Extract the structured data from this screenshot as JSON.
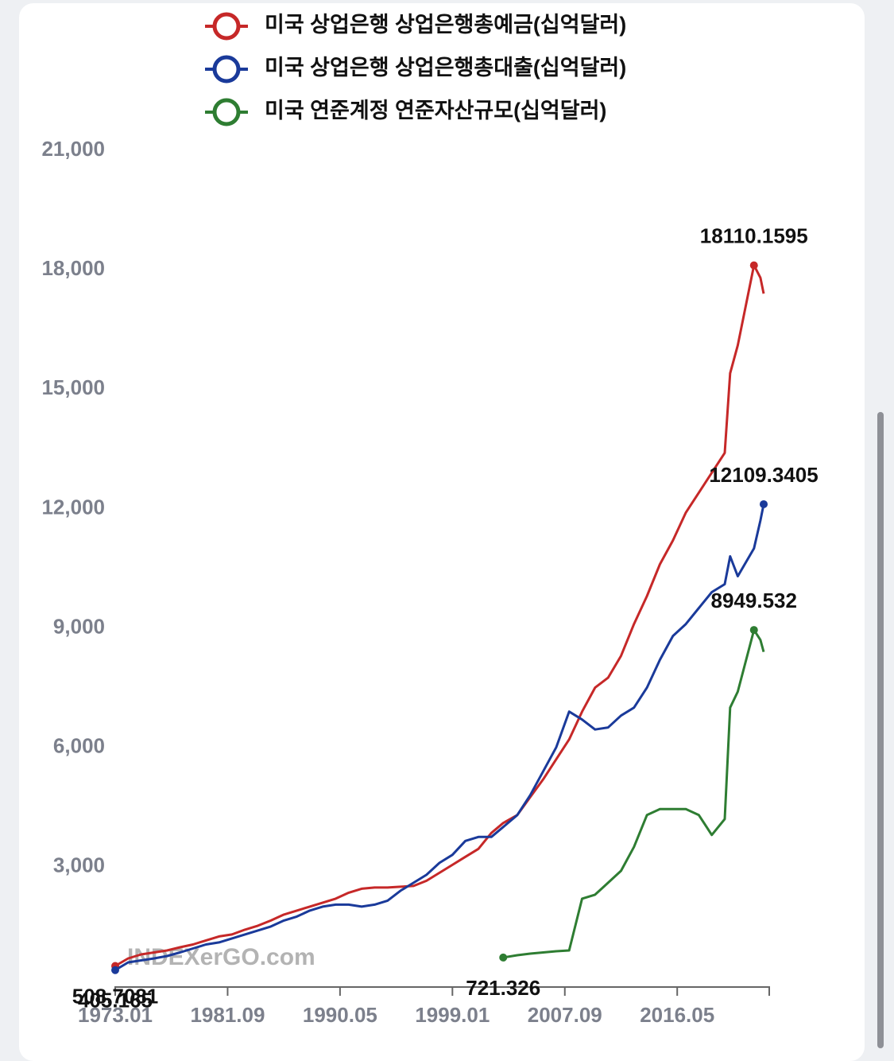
{
  "chart_data": {
    "type": "line",
    "watermark": "INDEXerGO.com",
    "x": [
      "1973.01",
      "1974.01",
      "1975.01",
      "1976.01",
      "1977.01",
      "1978.01",
      "1979.01",
      "1980.01",
      "1981.01",
      "1982.01",
      "1983.01",
      "1984.01",
      "1985.01",
      "1986.01",
      "1987.01",
      "1988.01",
      "1989.01",
      "1990.01",
      "1991.01",
      "1992.01",
      "1993.01",
      "1994.01",
      "1995.01",
      "1996.01",
      "1997.01",
      "1998.01",
      "1999.01",
      "2000.01",
      "2001.01",
      "2002.01",
      "2002.12",
      "2004.01",
      "2005.01",
      "2006.01",
      "2007.01",
      "2008.01",
      "2009.01",
      "2010.01",
      "2011.01",
      "2012.01",
      "2013.01",
      "2014.01",
      "2015.01",
      "2016.01",
      "2017.01",
      "2018.01",
      "2019.01",
      "2020.01",
      "2020.06",
      "2021.01",
      "2022.04",
      "2022.10",
      "2023.01"
    ],
    "series": [
      {
        "name": "미국 상업은행 상업은행총예금(십억달러)",
        "color": "#c62828",
        "values": [
          508.7081,
          700,
          800,
          850,
          900,
          980,
          1050,
          1150,
          1250,
          1300,
          1420,
          1520,
          1650,
          1800,
          1900,
          2000,
          2100,
          2200,
          2350,
          2450,
          2480,
          2480,
          2500,
          2520,
          2650,
          2850,
          3050,
          3250,
          3450,
          3850,
          4100,
          4300,
          4750,
          5200,
          5700,
          6200,
          6900,
          7500,
          7750,
          8300,
          9100,
          9800,
          10600,
          11200,
          11900,
          12400,
          12900,
          13400,
          15400,
          16100,
          18110.1595,
          17800,
          17400
        ]
      },
      {
        "name": "미국 상업은행 상업은행총대출(십억달러)",
        "color": "#1a3a9a",
        "values": [
          405.165,
          600,
          650,
          700,
          760,
          850,
          950,
          1050,
          1100,
          1200,
          1300,
          1400,
          1500,
          1650,
          1750,
          1900,
          2000,
          2050,
          2050,
          2000,
          2050,
          2150,
          2400,
          2600,
          2800,
          3100,
          3300,
          3650,
          3750,
          3750,
          4000,
          4300,
          4800,
          5400,
          6000,
          6900,
          6700,
          6450,
          6500,
          6800,
          7000,
          7500,
          8200,
          8800,
          9100,
          9500,
          9900,
          10100,
          10800,
          10300,
          11000,
          11700,
          12109.3405
        ]
      },
      {
        "name": "미국 연준계정 연준자산규모(십억달러)",
        "color": "#2e7d32",
        "values": [
          null,
          null,
          null,
          null,
          null,
          null,
          null,
          null,
          null,
          null,
          null,
          null,
          null,
          null,
          null,
          null,
          null,
          null,
          null,
          null,
          null,
          null,
          null,
          null,
          null,
          null,
          null,
          null,
          null,
          null,
          721.326,
          780,
          820,
          850,
          880,
          900,
          2200,
          2300,
          2600,
          2900,
          3500,
          4300,
          4450,
          4450,
          4450,
          4300,
          3800,
          4200,
          7000,
          7400,
          8949.532,
          8700,
          8400
        ]
      }
    ],
    "xticks": [
      "1973.01",
      "1981.09",
      "1990.05",
      "1999.01",
      "2007.09",
      "2016.05"
    ],
    "ylim": [
      0,
      21000
    ],
    "yticks": [
      {
        "value": 3000,
        "label": "3,000"
      },
      {
        "value": 6000,
        "label": "6,000"
      },
      {
        "value": 9000,
        "label": "9,000"
      },
      {
        "value": 12000,
        "label": "12,000"
      },
      {
        "value": 15000,
        "label": "15,000"
      },
      {
        "value": 18000,
        "label": "18,000"
      },
      {
        "value": 21000,
        "label": "21,000"
      }
    ],
    "grid": false
  }
}
